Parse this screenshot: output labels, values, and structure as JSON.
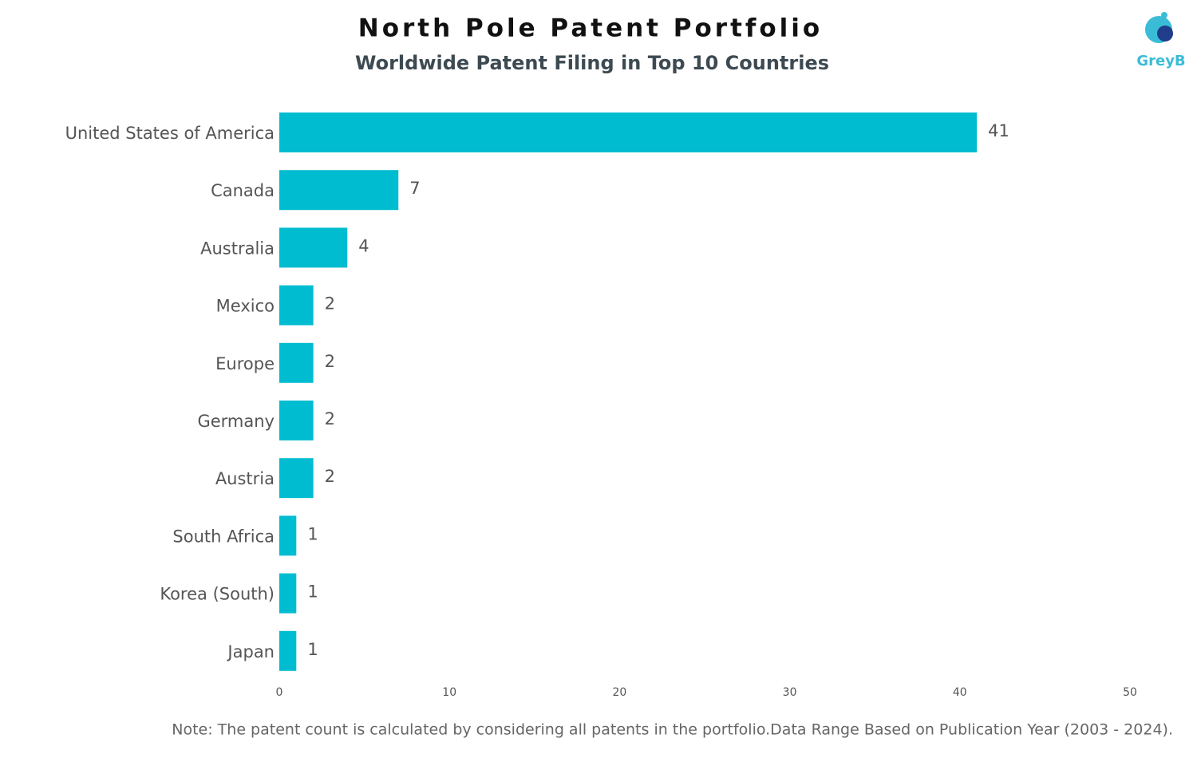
{
  "chart_data": {
    "type": "bar",
    "orientation": "horizontal",
    "title": "North Pole Patent Portfolio",
    "subtitle": "Worldwide Patent Filing in Top 10 Countries",
    "categories": [
      "United States of America",
      "Canada",
      "Australia",
      "Mexico",
      "Europe",
      "Germany",
      "Austria",
      "South Africa",
      "Korea (South)",
      "Japan"
    ],
    "values": [
      41,
      7,
      4,
      2,
      2,
      2,
      2,
      1,
      1,
      1
    ],
    "color": "#00bcd0",
    "xlim": [
      0,
      50
    ],
    "xticks": [
      0,
      10,
      20,
      30,
      40,
      50
    ],
    "grid": false,
    "note": "Note: The patent count is calculated by considering all patents in the portfolio.Data Range Based on Publication Year (2003 - 2024).",
    "logo": "GreyB"
  }
}
